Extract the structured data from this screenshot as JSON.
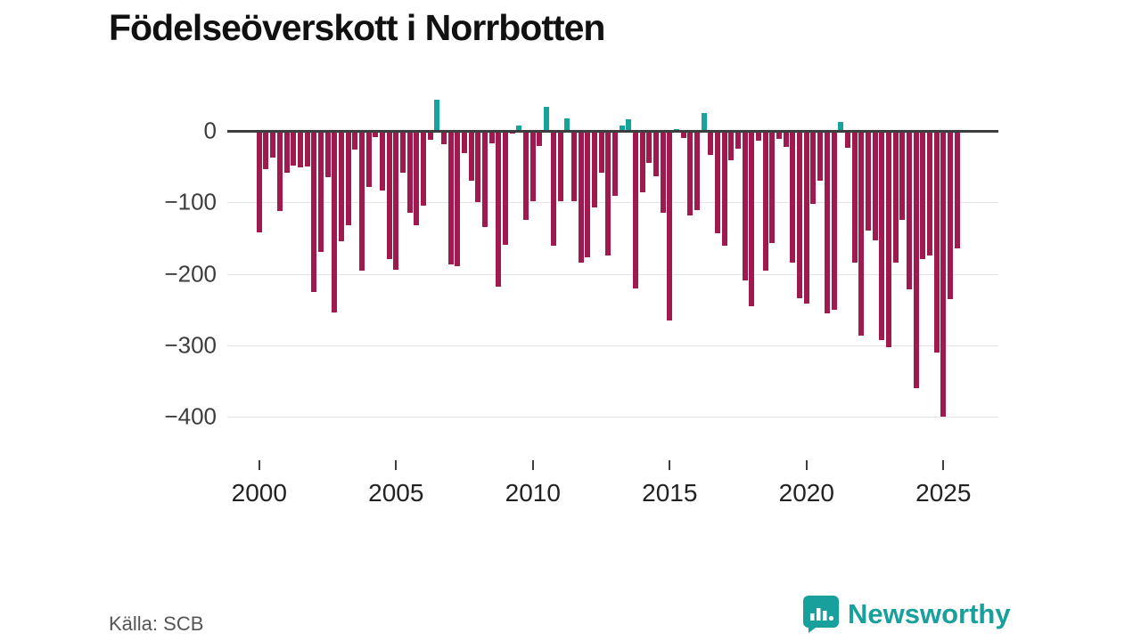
{
  "title": "Födelseöverskott i Norrbotten",
  "source": "Källa: SCB",
  "brand": {
    "name": "Newsworthy",
    "color": "#17a09c"
  },
  "colors": {
    "negative_bar": "#a01a4f",
    "positive_bar": "#16a39b",
    "axis": "#3d3d3d",
    "grid": "#e4e4e4",
    "title_text": "#111111",
    "tick_text": "#3d3d3d"
  },
  "chart_data": {
    "type": "bar",
    "title": "Födelseöverskott i Norrbotten",
    "x_start": "2000-Q1",
    "x_end": "2025-Q3",
    "x_step": "quarter",
    "values": [
      -142,
      -54,
      -37,
      -112,
      -58,
      -48,
      -51,
      -50,
      -225,
      -170,
      -65,
      -254,
      -155,
      -132,
      -26,
      -196,
      -79,
      -9,
      -83,
      -180,
      -195,
      -58,
      -115,
      -132,
      -105,
      -13,
      44,
      -19,
      -187,
      -190,
      -31,
      -70,
      -100,
      -134,
      -18,
      -218,
      -160,
      -4,
      7,
      -125,
      -98,
      -21,
      34,
      -161,
      -98,
      18,
      -98,
      -184,
      -177,
      -107,
      -58,
      -175,
      -91,
      7,
      16,
      -221,
      -86,
      -45,
      -64,
      -115,
      -265,
      3,
      -10,
      -118,
      -111,
      25,
      -34,
      -143,
      -161,
      -41,
      -25,
      -209,
      -245,
      -14,
      -196,
      -157,
      -11,
      -23,
      -184,
      -234,
      -242,
      -102,
      -70,
      -256,
      -250,
      12,
      -24,
      -185,
      -286,
      -140,
      -153,
      -293,
      -303,
      -185,
      -124,
      -222,
      -360,
      -180,
      -175,
      -310,
      -400,
      -235,
      -165
    ],
    "y_tick_labels": [
      "0",
      "−100",
      "−200",
      "−300",
      "−400"
    ],
    "y_tick_values": [
      0,
      -100,
      -200,
      -300,
      -400
    ],
    "x_tick_labels": [
      "2000",
      "2005",
      "2010",
      "2015",
      "2020",
      "2025"
    ],
    "x_tick_years": [
      2000,
      2005,
      2010,
      2015,
      2020,
      2025
    ],
    "ylim": [
      -420,
      60
    ],
    "grid": "horizontal",
    "legend": "none",
    "bar_color_rule": "negative=crimson, positive=teal"
  }
}
